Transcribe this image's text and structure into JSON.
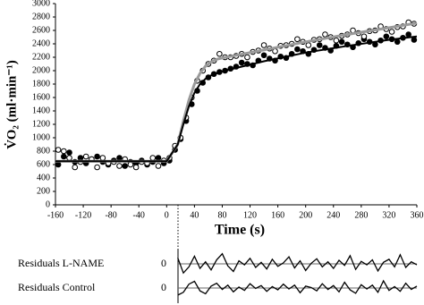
{
  "chart_data": [
    {
      "type": "scatter",
      "x_label": "Time (s)",
      "y_label": "V̇O₂ (ml·min⁻¹)",
      "xlim": [
        -160,
        360
      ],
      "xticks": [
        -160,
        -120,
        -80,
        -40,
        0,
        40,
        80,
        120,
        160,
        200,
        240,
        280,
        320,
        360
      ],
      "ylim": [
        0,
        3000
      ],
      "yticks": [
        0,
        200,
        400,
        600,
        800,
        1000,
        1200,
        1400,
        1600,
        1800,
        2000,
        2200,
        2400,
        2600,
        2800,
        3000
      ],
      "series": [
        {
          "type": "scatter",
          "marker": "filled",
          "color": "#000000",
          "x": [
            -156,
            -148,
            -140,
            -132,
            -124,
            -116,
            -108,
            -100,
            -92,
            -84,
            -76,
            -68,
            -60,
            -52,
            -44,
            -36,
            -28,
            -20,
            -12,
            -4,
            4,
            12,
            20,
            28,
            36,
            44,
            52,
            60,
            68,
            76,
            84,
            92,
            100,
            108,
            116,
            124,
            132,
            140,
            148,
            156,
            164,
            172,
            180,
            188,
            196,
            204,
            212,
            220,
            228,
            236,
            244,
            252,
            260,
            268,
            276,
            284,
            292,
            300,
            308,
            316,
            324,
            332,
            340,
            348,
            356
          ],
          "values": [
            600,
            720,
            780,
            640,
            700,
            620,
            680,
            720,
            640,
            600,
            660,
            700,
            580,
            640,
            620,
            660,
            600,
            640,
            700,
            620,
            660,
            820,
            980,
            1250,
            1500,
            1700,
            1820,
            1900,
            1950,
            1980,
            2000,
            2030,
            2060,
            2120,
            2100,
            2080,
            2150,
            2230,
            2180,
            2150,
            2210,
            2190,
            2250,
            2320,
            2290,
            2250,
            2310,
            2380,
            2340,
            2300,
            2370,
            2430,
            2390,
            2350,
            2410,
            2470,
            2430,
            2390,
            2450,
            2510,
            2470,
            2430,
            2490,
            2540,
            2460
          ]
        },
        {
          "type": "scatter",
          "marker": "open",
          "color": "#000000",
          "x": [
            -156,
            -148,
            -140,
            -132,
            -124,
            -116,
            -108,
            -100,
            -92,
            -84,
            -76,
            -68,
            -60,
            -52,
            -44,
            -36,
            -28,
            -20,
            -12,
            -4,
            4,
            12,
            20,
            28,
            36,
            44,
            52,
            60,
            68,
            76,
            84,
            92,
            100,
            108,
            116,
            124,
            132,
            140,
            148,
            156,
            164,
            172,
            180,
            188,
            196,
            204,
            212,
            220,
            228,
            236,
            244,
            252,
            260,
            268,
            276,
            284,
            292,
            300,
            308,
            316,
            324,
            332,
            340,
            348,
            356
          ],
          "values": [
            820,
            800,
            700,
            560,
            640,
            720,
            680,
            560,
            700,
            620,
            640,
            580,
            680,
            600,
            560,
            640,
            620,
            700,
            580,
            660,
            700,
            880,
            1000,
            1300,
            1600,
            1850,
            2000,
            2100,
            2150,
            2250,
            2200,
            2200,
            2220,
            2250,
            2200,
            2280,
            2300,
            2380,
            2330,
            2290,
            2370,
            2380,
            2400,
            2470,
            2430,
            2380,
            2460,
            2470,
            2540,
            2500,
            2450,
            2520,
            2540,
            2600,
            2560,
            2510,
            2590,
            2600,
            2660,
            2620,
            2580,
            2650,
            2660,
            2720,
            2700
          ]
        },
        {
          "type": "line",
          "color": "#9a9a9a",
          "width": 3,
          "x": [
            -160,
            0,
            16,
            24,
            32,
            40,
            48,
            56,
            64,
            72,
            80,
            100,
            140,
            200,
            260,
            320,
            360
          ],
          "values": [
            650,
            650,
            900,
            1250,
            1560,
            1800,
            1960,
            2070,
            2130,
            2170,
            2190,
            2230,
            2310,
            2430,
            2540,
            2640,
            2710
          ]
        },
        {
          "type": "line",
          "color": "#000000",
          "width": 2,
          "x": [
            -160,
            0,
            16,
            24,
            32,
            40,
            48,
            56,
            64,
            72,
            80,
            100,
            140,
            200,
            260,
            320,
            360
          ],
          "values": [
            650,
            650,
            900,
            1200,
            1470,
            1670,
            1800,
            1880,
            1930,
            1960,
            1990,
            2040,
            2140,
            2270,
            2370,
            2460,
            2510
          ]
        }
      ]
    },
    {
      "type": "line",
      "title": "Residuals L-NAME",
      "xlim": [
        -160,
        360
      ],
      "ylim": [
        -300,
        300
      ],
      "yticks": [
        0
      ],
      "series": [
        {
          "color": "#000000",
          "x": [
            16,
            24,
            32,
            40,
            48,
            56,
            64,
            72,
            80,
            88,
            96,
            104,
            112,
            120,
            128,
            136,
            144,
            152,
            160,
            168,
            176,
            184,
            192,
            200,
            208,
            216,
            224,
            232,
            240,
            248,
            256,
            264,
            272,
            280,
            288,
            296,
            304,
            312,
            320,
            328,
            336,
            344,
            352,
            360
          ],
          "values": [
            120,
            -180,
            -60,
            150,
            -90,
            40,
            -120,
            80,
            200,
            -40,
            -150,
            60,
            -20,
            110,
            -70,
            30,
            -100,
            90,
            -50,
            20,
            140,
            -80,
            60,
            -130,
            10,
            100,
            -60,
            40,
            -90,
            70,
            -30,
            160,
            -110,
            50,
            -20,
            80,
            -140,
            30,
            90,
            -60,
            180,
            -70,
            40,
            -20
          ]
        }
      ]
    },
    {
      "type": "line",
      "title": "Residuals Control",
      "xlim": [
        -160,
        360
      ],
      "ylim": [
        -300,
        300
      ],
      "yticks": [
        0
      ],
      "series": [
        {
          "color": "#000000",
          "x": [
            16,
            24,
            32,
            40,
            48,
            56,
            64,
            72,
            80,
            88,
            96,
            104,
            112,
            120,
            128,
            136,
            144,
            152,
            160,
            168,
            176,
            184,
            192,
            200,
            208,
            216,
            224,
            232,
            240,
            248,
            256,
            264,
            272,
            280,
            288,
            296,
            304,
            312,
            320,
            328,
            336,
            344,
            352,
            360
          ],
          "values": [
            -150,
            -90,
            80,
            140,
            -60,
            -120,
            40,
            100,
            -30,
            60,
            -80,
            20,
            -50,
            90,
            -10,
            50,
            -70,
            30,
            -40,
            80,
            -20,
            60,
            -100,
            40,
            10,
            -60,
            90,
            -30,
            50,
            -80,
            120,
            -40,
            -110,
            70,
            -20,
            60,
            -90,
            150,
            -50,
            30,
            -70,
            100,
            -30,
            40
          ]
        }
      ]
    }
  ]
}
